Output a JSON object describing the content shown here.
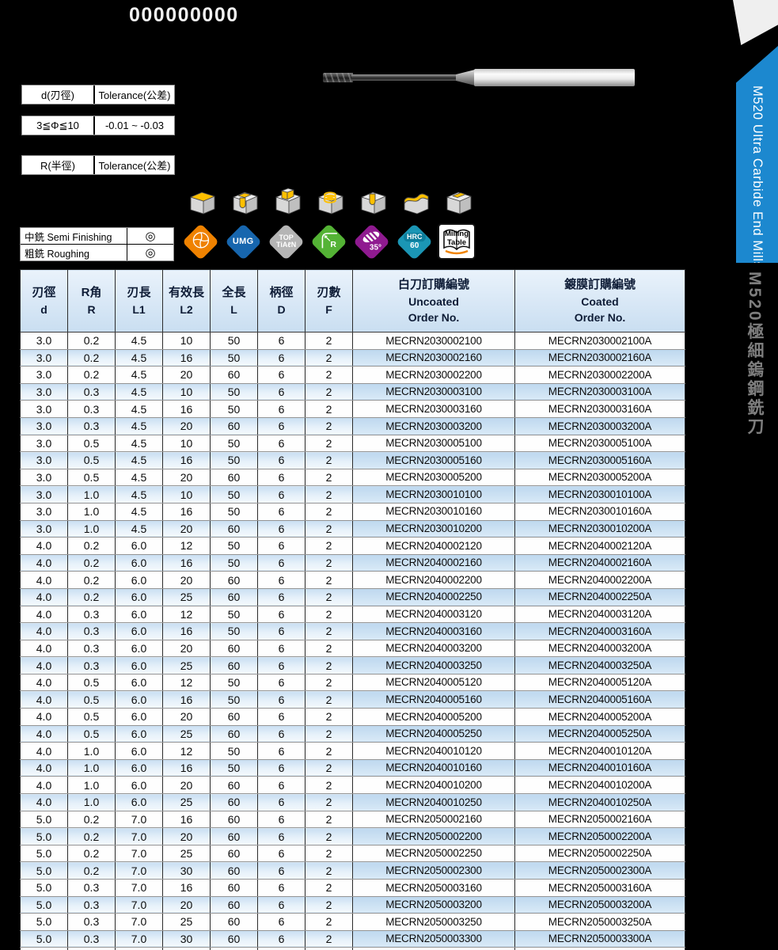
{
  "page": {
    "title": "000000000"
  },
  "spec_tables": [
    {
      "cells": [
        "d(刃徑)",
        "Tolerance(公差)"
      ]
    },
    {
      "cells": [
        "3≦Φ≦10",
        "-0.01 ~ -0.03"
      ]
    },
    {
      "cells": [
        "R(半徑)",
        "Tolerance(公差)"
      ]
    }
  ],
  "finishing": {
    "rows": [
      {
        "label": "中銑 Semi Finishing",
        "mark": "◎"
      },
      {
        "label": "粗銑 Roughing",
        "mark": "◎"
      }
    ]
  },
  "operation_icons": [
    "face-milling",
    "slot-milling",
    "shoulder-milling",
    "helical-milling",
    "drilling",
    "profile-milling",
    "pocket-milling"
  ],
  "badges": [
    {
      "name": "insert-pie-badge",
      "type": "pie",
      "color": "#ef8200",
      "label": ""
    },
    {
      "name": "umg-badge",
      "type": "text",
      "color": "#1766ae",
      "label": "UMG"
    },
    {
      "name": "top-tialn-badge",
      "type": "text2",
      "color": "#b5b5b5",
      "label": "TOP",
      "label2": "TiAℓN"
    },
    {
      "name": "corner-radius-badge",
      "type": "radius",
      "color": "#54b335",
      "label": "R"
    },
    {
      "name": "helix-angle-badge",
      "type": "helix",
      "color": "#8f1a90",
      "label": "35°"
    },
    {
      "name": "hardness-badge",
      "type": "hrc",
      "color": "#1b96b5",
      "label": "HRC",
      "label2": "60"
    },
    {
      "name": "milling-table-badge",
      "type": "book",
      "color": "#ffffff",
      "label": "Milling",
      "label2": "Table"
    }
  ],
  "table": {
    "headers": [
      [
        "刃徑",
        "d"
      ],
      [
        "R角",
        "R"
      ],
      [
        "刃長",
        "L1"
      ],
      [
        "有效長",
        "L2"
      ],
      [
        "全長",
        "L"
      ],
      [
        "柄徑",
        "D"
      ],
      [
        "刃數",
        "F"
      ],
      [
        "白刀訂購編號",
        "Uncoated",
        "Order No."
      ],
      [
        "鍍膜訂購編號",
        "Coated",
        "Order No."
      ]
    ],
    "rows": [
      [
        "3.0",
        "0.2",
        "4.5",
        "10",
        "50",
        "6",
        "2",
        "MECRN2030002100",
        "MECRN2030002100A"
      ],
      [
        "3.0",
        "0.2",
        "4.5",
        "16",
        "50",
        "6",
        "2",
        "MECRN2030002160",
        "MECRN2030002160A"
      ],
      [
        "3.0",
        "0.2",
        "4.5",
        "20",
        "60",
        "6",
        "2",
        "MECRN2030002200",
        "MECRN2030002200A"
      ],
      [
        "3.0",
        "0.3",
        "4.5",
        "10",
        "50",
        "6",
        "2",
        "MECRN2030003100",
        "MECRN2030003100A"
      ],
      [
        "3.0",
        "0.3",
        "4.5",
        "16",
        "50",
        "6",
        "2",
        "MECRN2030003160",
        "MECRN2030003160A"
      ],
      [
        "3.0",
        "0.3",
        "4.5",
        "20",
        "60",
        "6",
        "2",
        "MECRN2030003200",
        "MECRN2030003200A"
      ],
      [
        "3.0",
        "0.5",
        "4.5",
        "10",
        "50",
        "6",
        "2",
        "MECRN2030005100",
        "MECRN2030005100A"
      ],
      [
        "3.0",
        "0.5",
        "4.5",
        "16",
        "50",
        "6",
        "2",
        "MECRN2030005160",
        "MECRN2030005160A"
      ],
      [
        "3.0",
        "0.5",
        "4.5",
        "20",
        "60",
        "6",
        "2",
        "MECRN2030005200",
        "MECRN2030005200A"
      ],
      [
        "3.0",
        "1.0",
        "4.5",
        "10",
        "50",
        "6",
        "2",
        "MECRN2030010100",
        "MECRN2030010100A"
      ],
      [
        "3.0",
        "1.0",
        "4.5",
        "16",
        "50",
        "6",
        "2",
        "MECRN2030010160",
        "MECRN2030010160A"
      ],
      [
        "3.0",
        "1.0",
        "4.5",
        "20",
        "60",
        "6",
        "2",
        "MECRN2030010200",
        "MECRN2030010200A"
      ],
      [
        "4.0",
        "0.2",
        "6.0",
        "12",
        "50",
        "6",
        "2",
        "MECRN2040002120",
        "MECRN2040002120A"
      ],
      [
        "4.0",
        "0.2",
        "6.0",
        "16",
        "50",
        "6",
        "2",
        "MECRN2040002160",
        "MECRN2040002160A"
      ],
      [
        "4.0",
        "0.2",
        "6.0",
        "20",
        "60",
        "6",
        "2",
        "MECRN2040002200",
        "MECRN2040002200A"
      ],
      [
        "4.0",
        "0.2",
        "6.0",
        "25",
        "60",
        "6",
        "2",
        "MECRN2040002250",
        "MECRN2040002250A"
      ],
      [
        "4.0",
        "0.3",
        "6.0",
        "12",
        "50",
        "6",
        "2",
        "MECRN2040003120",
        "MECRN2040003120A"
      ],
      [
        "4.0",
        "0.3",
        "6.0",
        "16",
        "50",
        "6",
        "2",
        "MECRN2040003160",
        "MECRN2040003160A"
      ],
      [
        "4.0",
        "0.3",
        "6.0",
        "20",
        "60",
        "6",
        "2",
        "MECRN2040003200",
        "MECRN2040003200A"
      ],
      [
        "4.0",
        "0.3",
        "6.0",
        "25",
        "60",
        "6",
        "2",
        "MECRN2040003250",
        "MECRN2040003250A"
      ],
      [
        "4.0",
        "0.5",
        "6.0",
        "12",
        "50",
        "6",
        "2",
        "MECRN2040005120",
        "MECRN2040005120A"
      ],
      [
        "4.0",
        "0.5",
        "6.0",
        "16",
        "50",
        "6",
        "2",
        "MECRN2040005160",
        "MECRN2040005160A"
      ],
      [
        "4.0",
        "0.5",
        "6.0",
        "20",
        "60",
        "6",
        "2",
        "MECRN2040005200",
        "MECRN2040005200A"
      ],
      [
        "4.0",
        "0.5",
        "6.0",
        "25",
        "60",
        "6",
        "2",
        "MECRN2040005250",
        "MECRN2040005250A"
      ],
      [
        "4.0",
        "1.0",
        "6.0",
        "12",
        "50",
        "6",
        "2",
        "MECRN2040010120",
        "MECRN2040010120A"
      ],
      [
        "4.0",
        "1.0",
        "6.0",
        "16",
        "50",
        "6",
        "2",
        "MECRN2040010160",
        "MECRN2040010160A"
      ],
      [
        "4.0",
        "1.0",
        "6.0",
        "20",
        "60",
        "6",
        "2",
        "MECRN2040010200",
        "MECRN2040010200A"
      ],
      [
        "4.0",
        "1.0",
        "6.0",
        "25",
        "60",
        "6",
        "2",
        "MECRN2040010250",
        "MECRN2040010250A"
      ],
      [
        "5.0",
        "0.2",
        "7.0",
        "16",
        "60",
        "6",
        "2",
        "MECRN2050002160",
        "MECRN2050002160A"
      ],
      [
        "5.0",
        "0.2",
        "7.0",
        "20",
        "60",
        "6",
        "2",
        "MECRN2050002200",
        "MECRN2050002200A"
      ],
      [
        "5.0",
        "0.2",
        "7.0",
        "25",
        "60",
        "6",
        "2",
        "MECRN2050002250",
        "MECRN2050002250A"
      ],
      [
        "5.0",
        "0.2",
        "7.0",
        "30",
        "60",
        "6",
        "2",
        "MECRN2050002300",
        "MECRN2050002300A"
      ],
      [
        "5.0",
        "0.3",
        "7.0",
        "16",
        "60",
        "6",
        "2",
        "MECRN2050003160",
        "MECRN2050003160A"
      ],
      [
        "5.0",
        "0.3",
        "7.0",
        "20",
        "60",
        "6",
        "2",
        "MECRN2050003200",
        "MECRN2050003200A"
      ],
      [
        "5.0",
        "0.3",
        "7.0",
        "25",
        "60",
        "6",
        "2",
        "MECRN2050003250",
        "MECRN2050003250A"
      ],
      [
        "5.0",
        "0.3",
        "7.0",
        "30",
        "60",
        "6",
        "2",
        "MECRN2050003300",
        "MECRN2050003300A"
      ]
    ]
  },
  "side_banner": {
    "en": "M520 Ultra Carbide End Mills",
    "zh": "M520極細鎢鋼銑刀"
  },
  "colors": {
    "banner_blue": "#1c88cf",
    "header_bg": "#cfe2f4",
    "row_alt_blue": "#d9e9f7",
    "accent_yellow": "#ffc000"
  }
}
